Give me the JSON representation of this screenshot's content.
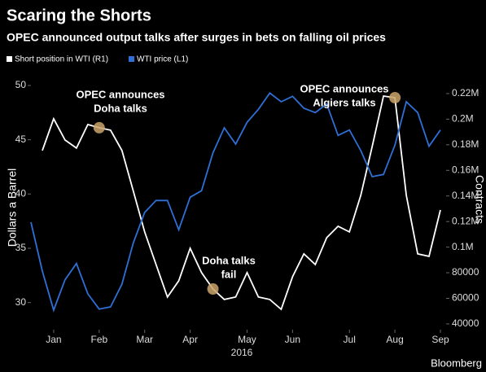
{
  "chart_data": {
    "type": "line",
    "title": "Scaring the Shorts",
    "subtitle": "OPEC announced output talks after surges in bets on falling oil prices",
    "ylabel": "Dollars a Barrel",
    "y2label": "Contracts",
    "xlabel": "2016",
    "source": "Bloomberg",
    "categories": [
      null,
      null,
      "Jan",
      null,
      null,
      null,
      "Feb",
      null,
      null,
      null,
      "Mar",
      null,
      null,
      null,
      "Apr",
      null,
      null,
      null,
      null,
      "May",
      null,
      null,
      null,
      "Jun",
      null,
      null,
      null,
      null,
      "Jul",
      null,
      null,
      null,
      "Aug",
      null,
      null,
      null,
      "Sep"
    ],
    "series": [
      {
        "name": "Short position in WTI (R1)",
        "color": "#ffffff",
        "axis": "y2",
        "values": [
          null,
          175500,
          200300,
          183700,
          177400,
          195800,
          193300,
          191400,
          175500,
          143700,
          111900,
          86400,
          61000,
          73700,
          99100,
          80100,
          67300,
          59100,
          61000,
          80100,
          61000,
          59100,
          51400,
          76900,
          94700,
          86400,
          107400,
          116300,
          111900,
          140500,
          178600,
          218100,
          216800,
          140500,
          94700,
          92800,
          129000
        ]
      },
      {
        "name": "WTI price (L1)",
        "color": "#2f6fd6",
        "values": [
          37.4,
          32.9,
          29.3,
          32.1,
          33.6,
          30.8,
          29.4,
          29.6,
          31.7,
          35.5,
          38.3,
          39.4,
          39.4,
          36.7,
          39.7,
          40.3,
          43.8,
          46.1,
          44.6,
          46.6,
          47.8,
          49.3,
          48.5,
          49.0,
          47.9,
          47.5,
          48.3,
          45.4,
          45.9,
          44.0,
          41.6,
          41.8,
          44.5,
          48.5,
          47.5,
          44.4,
          45.9
        ]
      }
    ],
    "ylim": [
      27.5,
      50.75
    ],
    "yticks": [
      30,
      35,
      40,
      45,
      50
    ],
    "y2lim": [
      35500,
      232700
    ],
    "y2ticks": [
      40000,
      60000,
      80000,
      {
        "value": 100000,
        "label": "0.1M"
      },
      {
        "value": 120000,
        "label": "0.12M"
      },
      {
        "value": 140000,
        "label": "0.14M"
      },
      {
        "value": 160000,
        "label": "0.16M"
      },
      {
        "value": 180000,
        "label": "0.18M"
      },
      {
        "value": 200000,
        "label": "0.2M"
      },
      {
        "value": 220000,
        "label": "0.22M"
      }
    ],
    "annotations": [
      [
        "OPEC announces",
        "Doha talks"
      ],
      [
        "Doha talks",
        "fail"
      ],
      [
        "OPEC announces",
        "Algiers talks"
      ]
    ]
  }
}
